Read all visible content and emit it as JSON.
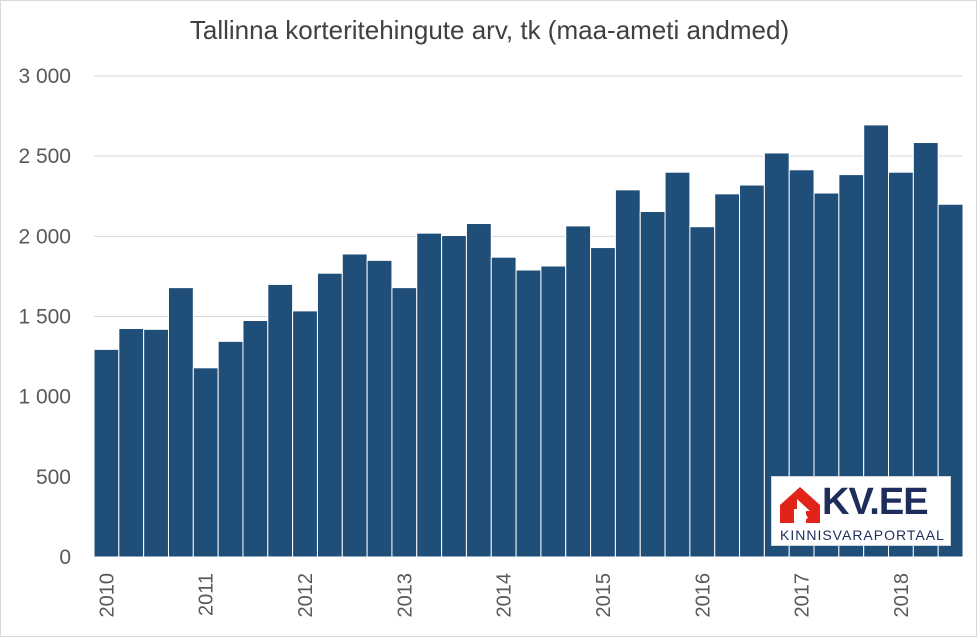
{
  "chart_data": {
    "type": "bar",
    "title": "Tallinna korteritehingute arv, tk (maa-ameti andmed)",
    "xlabel": "",
    "ylabel": "",
    "ylim": [
      0,
      3000
    ],
    "yticks": [
      "0",
      "500",
      "1 000",
      "1 500",
      "2 000",
      "2 500",
      "3 000"
    ],
    "ytick_values": [
      0,
      500,
      1000,
      1500,
      2000,
      2500,
      3000
    ],
    "xtick_labels": [
      "2010",
      "2011",
      "2012",
      "2013",
      "2014",
      "2015",
      "2016",
      "2017",
      "2018"
    ],
    "grid": true,
    "bar_color": "#1f4e79",
    "categories": [
      "2010 Q1",
      "2010 Q2",
      "2010 Q3",
      "2010 Q4",
      "2011 Q1",
      "2011 Q2",
      "2011 Q3",
      "2011 Q4",
      "2012 Q1",
      "2012 Q2",
      "2012 Q3",
      "2012 Q4",
      "2013 Q1",
      "2013 Q2",
      "2013 Q3",
      "2013 Q4",
      "2014 Q1",
      "2014 Q2",
      "2014 Q3",
      "2014 Q4",
      "2015 Q1",
      "2015 Q2",
      "2015 Q3",
      "2015 Q4",
      "2016 Q1",
      "2016 Q2",
      "2016 Q3",
      "2016 Q4",
      "2017 Q1",
      "2017 Q2",
      "2017 Q3",
      "2017 Q4",
      "2018 Q1",
      "2018 Q2",
      "2018 Q3"
    ],
    "values": [
      1295,
      1425,
      1420,
      1680,
      1180,
      1345,
      1475,
      1700,
      1535,
      1770,
      1890,
      1850,
      1680,
      2020,
      2005,
      2080,
      1870,
      1790,
      1815,
      2065,
      1930,
      2290,
      2155,
      2400,
      2060,
      2265,
      2320,
      2520,
      2415,
      2270,
      2385,
      2695,
      2400,
      2585,
      2200
    ]
  },
  "logo": {
    "text": "KV.EE",
    "subtext": "KINNISVARAPORTAAL",
    "house_color": "#e2231a",
    "text_color": "#1f2d5c"
  }
}
